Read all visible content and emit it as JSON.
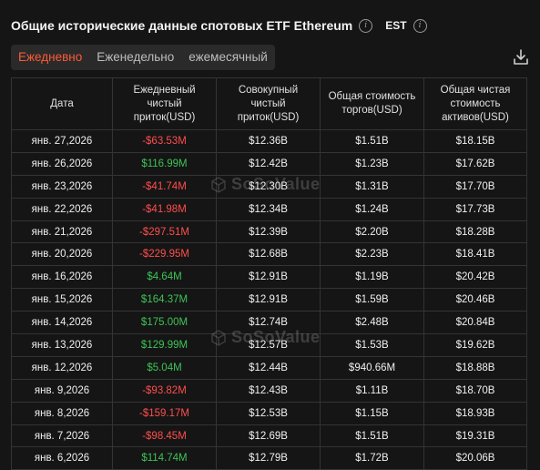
{
  "header": {
    "title": "Общие исторические данные спотовых ETF Ethereum",
    "timezone": "EST"
  },
  "tabs": [
    {
      "label": "Ежедневно",
      "active": true
    },
    {
      "label": "Еженедельно",
      "active": false
    },
    {
      "label": "ежемесячный",
      "active": false
    }
  ],
  "table": {
    "columns": [
      "Дата",
      "Ежедневный чистый приток(USD)",
      "Совокупный чистый приток(USD)",
      "Общая стоимость торгов(USD)",
      "Общая чистая стоимость активов(USD)"
    ],
    "rows": [
      {
        "date": "янв. 27,2026",
        "daily": "-$63.53M",
        "cumulative": "$12.36B",
        "traded": "$1.51B",
        "assets": "$18.15B"
      },
      {
        "date": "янв. 26,2026",
        "daily": "$116.99M",
        "cumulative": "$12.42B",
        "traded": "$1.23B",
        "assets": "$17.62B"
      },
      {
        "date": "янв. 23,2026",
        "daily": "-$41.74M",
        "cumulative": "$12.30B",
        "traded": "$1.31B",
        "assets": "$17.70B"
      },
      {
        "date": "янв. 22,2026",
        "daily": "-$41.98M",
        "cumulative": "$12.34B",
        "traded": "$1.24B",
        "assets": "$17.73B"
      },
      {
        "date": "янв. 21,2026",
        "daily": "-$297.51M",
        "cumulative": "$12.39B",
        "traded": "$2.20B",
        "assets": "$18.28B"
      },
      {
        "date": "янв. 20,2026",
        "daily": "-$229.95M",
        "cumulative": "$12.68B",
        "traded": "$2.23B",
        "assets": "$18.41B"
      },
      {
        "date": "янв. 16,2026",
        "daily": "$4.64M",
        "cumulative": "$12.91B",
        "traded": "$1.19B",
        "assets": "$20.42B"
      },
      {
        "date": "янв. 15,2026",
        "daily": "$164.37M",
        "cumulative": "$12.91B",
        "traded": "$1.59B",
        "assets": "$20.46B"
      },
      {
        "date": "янв. 14,2026",
        "daily": "$175.00M",
        "cumulative": "$12.74B",
        "traded": "$2.48B",
        "assets": "$20.84B"
      },
      {
        "date": "янв. 13,2026",
        "daily": "$129.99M",
        "cumulative": "$12.57B",
        "traded": "$1.53B",
        "assets": "$19.62B"
      },
      {
        "date": "янв. 12,2026",
        "daily": "$5.04M",
        "cumulative": "$12.44B",
        "traded": "$940.66M",
        "assets": "$18.88B"
      },
      {
        "date": "янв. 9,2026",
        "daily": "-$93.82M",
        "cumulative": "$12.43B",
        "traded": "$1.11B",
        "assets": "$18.70B"
      },
      {
        "date": "янв. 8,2026",
        "daily": "-$159.17M",
        "cumulative": "$12.53B",
        "traded": "$1.15B",
        "assets": "$18.93B"
      },
      {
        "date": "янв. 7,2026",
        "daily": "-$98.45M",
        "cumulative": "$12.69B",
        "traded": "$1.51B",
        "assets": "$19.31B"
      },
      {
        "date": "янв. 6,2026",
        "daily": "$114.74M",
        "cumulative": "$12.79B",
        "traded": "$1.72B",
        "assets": "$20.06B"
      }
    ]
  },
  "watermark": "SoSoValue",
  "colors": {
    "background": "#151515",
    "accent": "#ff5a36",
    "positive": "#3ec356",
    "negative": "#ff4d4d"
  },
  "icons": {
    "info": "info-icon",
    "download": "download-icon"
  }
}
